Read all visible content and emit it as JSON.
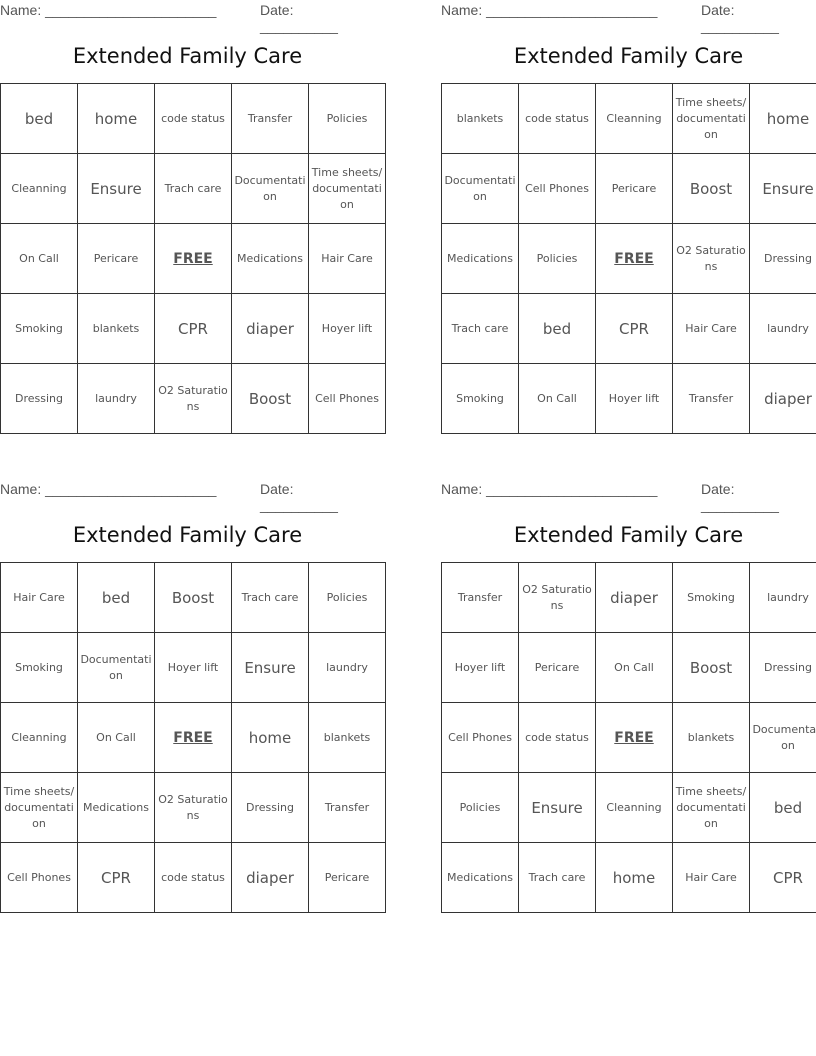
{
  "cards": [
    {
      "name_label": "Name: ______________________",
      "date_label": "Date: __________",
      "title": "Extended Family Care",
      "rows": [
        [
          "bed",
          "home",
          "code status",
          "Transfer",
          "Policies"
        ],
        [
          "Cleanning",
          "Ensure",
          "Trach care",
          "Documentation",
          "Time sheets/ documentation"
        ],
        [
          "On Call",
          "Pericare",
          "FREE",
          "Medications",
          "Hair Care"
        ],
        [
          "Smoking",
          "blankets",
          "CPR",
          "diaper",
          "Hoyer lift"
        ],
        [
          "Dressing",
          "laundry",
          "O2 Saturations",
          "Boost",
          "Cell Phones"
        ]
      ]
    },
    {
      "name_label": "Name: ______________________",
      "date_label": "Date: __________",
      "title": "Extended Family Care",
      "rows": [
        [
          "blankets",
          "code status",
          "Cleanning",
          "Time sheets/ documentation",
          "home"
        ],
        [
          "Documentation",
          "Cell Phones",
          "Pericare",
          "Boost",
          "Ensure"
        ],
        [
          "Medications",
          "Policies",
          "FREE",
          "O2 Saturations",
          "Dressing"
        ],
        [
          "Trach care",
          "bed",
          "CPR",
          "Hair Care",
          "laundry"
        ],
        [
          "Smoking",
          "On Call",
          "Hoyer lift",
          "Transfer",
          "diaper"
        ]
      ]
    },
    {
      "name_label": "Name: ______________________",
      "date_label": "Date: __________",
      "title": "Extended Family Care",
      "rows": [
        [
          "Hair Care",
          "bed",
          "Boost",
          "Trach care",
          "Policies"
        ],
        [
          "Smoking",
          "Documentation",
          "Hoyer lift",
          "Ensure",
          "laundry"
        ],
        [
          "Cleanning",
          "On Call",
          "FREE",
          "home",
          "blankets"
        ],
        [
          "Time sheets/ documentation",
          "Medications",
          "O2 Saturations",
          "Dressing",
          "Transfer"
        ],
        [
          "Cell Phones",
          "CPR",
          "code status",
          "diaper",
          "Pericare"
        ]
      ]
    },
    {
      "name_label": "Name: ______________________",
      "date_label": "Date: __________",
      "title": "Extended Family Care",
      "rows": [
        [
          "Transfer",
          "O2 Saturations",
          "diaper",
          "Smoking",
          "laundry"
        ],
        [
          "Hoyer lift",
          "Pericare",
          "On Call",
          "Boost",
          "Dressing"
        ],
        [
          "Cell Phones",
          "code status",
          "FREE",
          "blankets",
          "Documentation"
        ],
        [
          "Policies",
          "Ensure",
          "Cleanning",
          "Time sheets/ documentation",
          "bed"
        ],
        [
          "Medications",
          "Trach care",
          "home",
          "Hair Care",
          "CPR"
        ]
      ]
    }
  ]
}
